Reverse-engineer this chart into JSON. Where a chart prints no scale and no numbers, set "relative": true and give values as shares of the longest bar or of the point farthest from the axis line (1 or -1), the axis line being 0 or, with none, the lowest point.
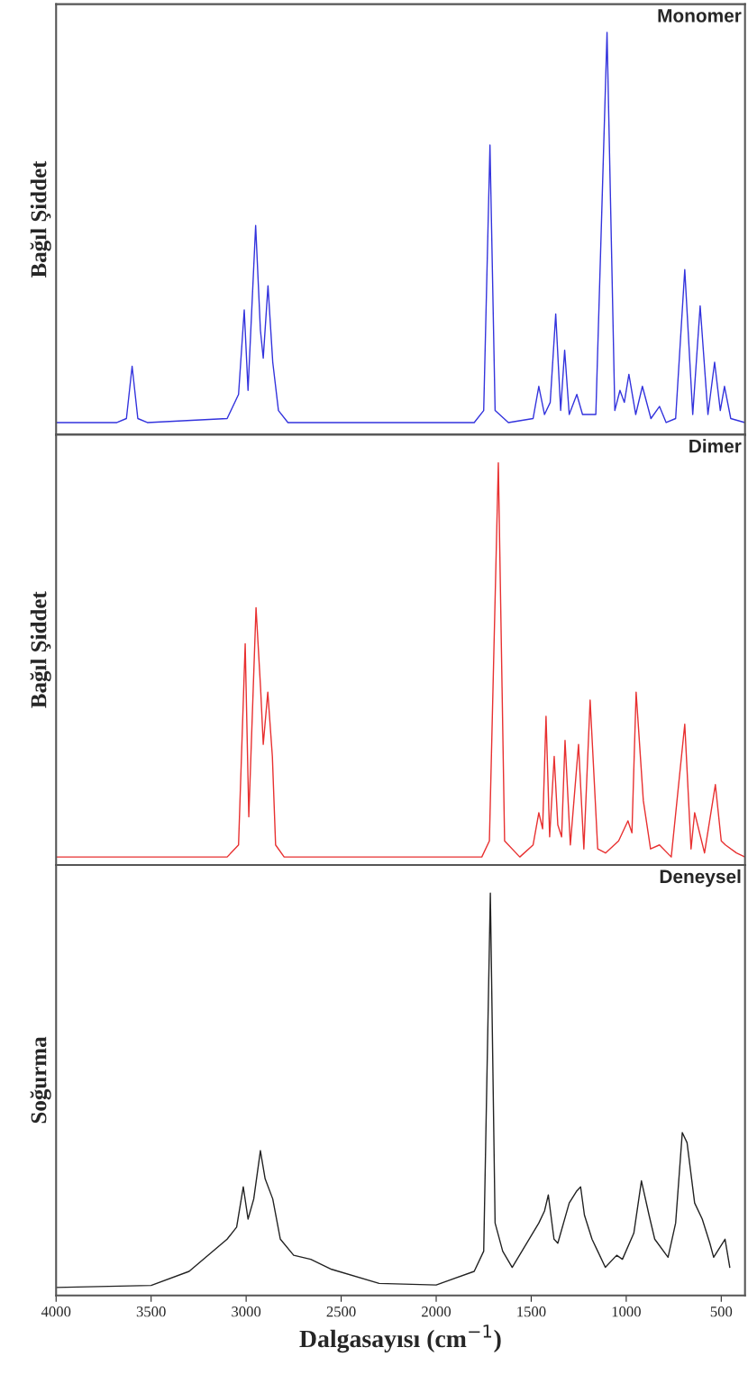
{
  "chart_data": [
    {
      "type": "line",
      "title": "Monomer",
      "ylabel": "Bağıl Şiddet",
      "relative": true,
      "tick_labels": false,
      "xlim": [
        4000,
        375
      ],
      "xticks": [
        4000,
        3500,
        3000,
        2500,
        2000,
        1500,
        1000,
        500
      ],
      "series": [
        {
          "color": "#3333dd",
          "x": [
            4000,
            3680,
            3630,
            3600,
            3570,
            3520,
            3100,
            3040,
            3010,
            2990,
            2950,
            2925,
            2910,
            2885,
            2860,
            2830,
            2780,
            1800,
            1750,
            1717,
            1690,
            1620,
            1490,
            1460,
            1430,
            1400,
            1371,
            1345,
            1324,
            1300,
            1260,
            1230,
            1160,
            1101,
            1060,
            1033,
            1010,
            986,
            950,
            915,
            870,
            825,
            790,
            740,
            692,
            650,
            611,
            570,
            535,
            505,
            483,
            450,
            375
          ],
          "values": [
            0.03,
            0.03,
            0.04,
            0.17,
            0.04,
            0.03,
            0.04,
            0.1,
            0.31,
            0.11,
            0.52,
            0.26,
            0.19,
            0.37,
            0.18,
            0.06,
            0.03,
            0.03,
            0.06,
            0.72,
            0.06,
            0.03,
            0.04,
            0.12,
            0.05,
            0.08,
            0.3,
            0.06,
            0.21,
            0.05,
            0.1,
            0.05,
            0.05,
            1.0,
            0.06,
            0.11,
            0.08,
            0.15,
            0.05,
            0.12,
            0.04,
            0.07,
            0.03,
            0.04,
            0.41,
            0.05,
            0.32,
            0.05,
            0.18,
            0.06,
            0.12,
            0.04,
            0.03
          ]
        }
      ]
    },
    {
      "type": "line",
      "title": "Dimer",
      "ylabel": "Bağıl Şiddet",
      "relative": true,
      "tick_labels": false,
      "xlim": [
        4000,
        375
      ],
      "xticks": [
        4000,
        3500,
        3000,
        2500,
        2000,
        1500,
        1000,
        500
      ],
      "series": [
        {
          "color": "#e83030",
          "x": [
            4000,
            3100,
            3040,
            3005,
            2986,
            2948,
            2924,
            2910,
            2886,
            2862,
            2845,
            2800,
            1760,
            1720,
            1673,
            1640,
            1560,
            1490,
            1460,
            1440,
            1422,
            1403,
            1379,
            1360,
            1340,
            1322,
            1294,
            1251,
            1223,
            1190,
            1150,
            1109,
            1040,
            991,
            970,
            948,
            910,
            872,
            825,
            763,
            692,
            659,
            640,
            588,
            531,
            500,
            478,
            420,
            375
          ],
          "values": [
            0.02,
            0.02,
            0.05,
            0.55,
            0.12,
            0.64,
            0.44,
            0.3,
            0.43,
            0.27,
            0.05,
            0.02,
            0.02,
            0.06,
            1.0,
            0.06,
            0.02,
            0.05,
            0.13,
            0.09,
            0.37,
            0.07,
            0.27,
            0.1,
            0.07,
            0.31,
            0.05,
            0.3,
            0.04,
            0.41,
            0.04,
            0.03,
            0.06,
            0.11,
            0.08,
            0.43,
            0.16,
            0.04,
            0.05,
            0.02,
            0.35,
            0.04,
            0.13,
            0.03,
            0.2,
            0.06,
            0.05,
            0.03,
            0.02
          ]
        }
      ]
    },
    {
      "type": "line",
      "title": "Deneysel",
      "ylabel": "Soğurma",
      "xlabel": "Dalgasayısı (cm$^{−1}$)",
      "relative": true,
      "tick_labels": "x",
      "xlim": [
        4000,
        375
      ],
      "xticks": [
        4000,
        3500,
        3000,
        2500,
        2000,
        1500,
        1000,
        500
      ],
      "series": [
        {
          "color": "#222222",
          "x": [
            4000,
            3500,
            3300,
            3100,
            3050,
            3015,
            2990,
            2960,
            2925,
            2900,
            2860,
            2820,
            2750,
            2660,
            2550,
            2300,
            2000,
            1800,
            1750,
            1715,
            1690,
            1650,
            1600,
            1460,
            1430,
            1410,
            1380,
            1360,
            1300,
            1260,
            1240,
            1220,
            1180,
            1150,
            1110,
            1050,
            1020,
            960,
            920,
            880,
            850,
            780,
            740,
            705,
            680,
            640,
            600,
            560,
            540,
            480,
            455
          ],
          "values": [
            0.02,
            0.025,
            0.06,
            0.14,
            0.17,
            0.27,
            0.19,
            0.24,
            0.36,
            0.29,
            0.24,
            0.14,
            0.1,
            0.09,
            0.065,
            0.03,
            0.026,
            0.06,
            0.11,
            1.0,
            0.18,
            0.11,
            0.07,
            0.18,
            0.21,
            0.25,
            0.14,
            0.13,
            0.23,
            0.26,
            0.27,
            0.2,
            0.14,
            0.11,
            0.07,
            0.1,
            0.09,
            0.155,
            0.285,
            0.2,
            0.14,
            0.095,
            0.18,
            0.405,
            0.38,
            0.23,
            0.19,
            0.13,
            0.095,
            0.14,
            0.07
          ]
        }
      ]
    }
  ]
}
